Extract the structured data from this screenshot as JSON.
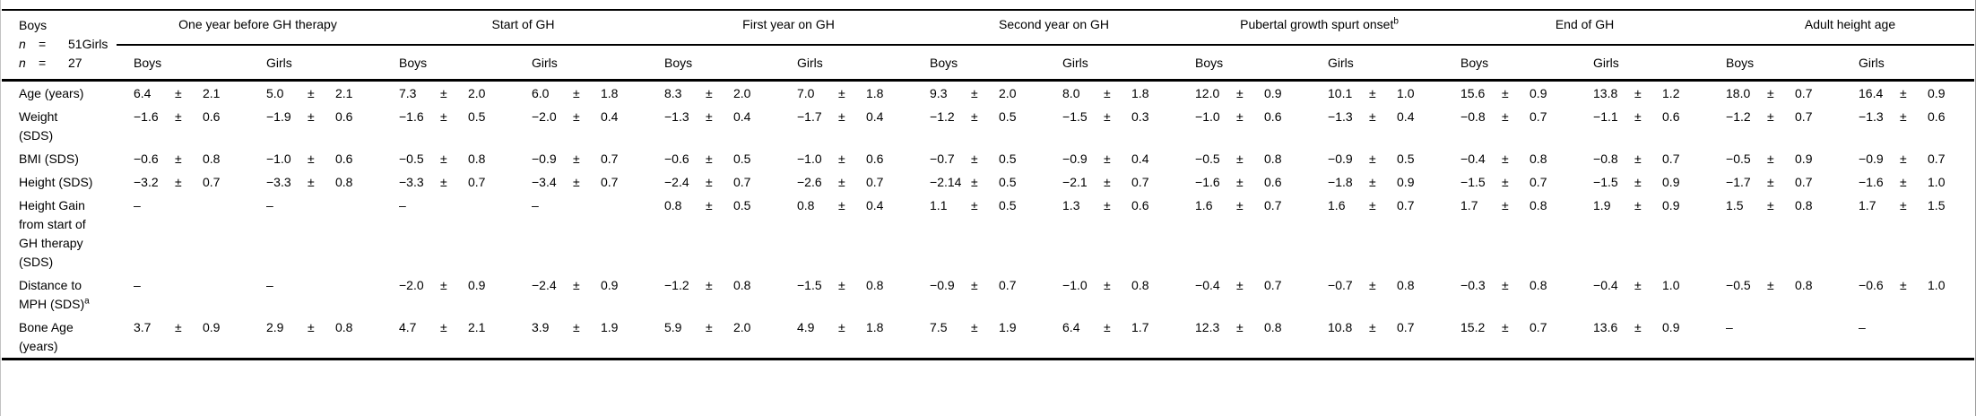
{
  "table": {
    "stub_header": {
      "line1": "Boys",
      "n1": "n",
      "eq1": "=",
      "v1": "51Girls",
      "n2": "n",
      "eq2": "=",
      "v2": "27"
    },
    "sex_labels": [
      "Boys",
      "Girls"
    ],
    "plus_minus": "±",
    "dash": "–",
    "column_groups": [
      {
        "label": "One year before GH therapy",
        "sup": ""
      },
      {
        "label": "Start of GH",
        "sup": ""
      },
      {
        "label": "First year on GH",
        "sup": ""
      },
      {
        "label": "Second year on GH",
        "sup": ""
      },
      {
        "label": "Pubertal growth spurt onset",
        "sup": "b"
      },
      {
        "label": "End of GH",
        "sup": ""
      },
      {
        "label": "Adult height age",
        "sup": ""
      }
    ],
    "rows": [
      {
        "label": "Age (years)",
        "sup": "",
        "cells": [
          [
            "6.4",
            "2.1"
          ],
          [
            "5.0",
            "2.1"
          ],
          [
            "7.3",
            "2.0"
          ],
          [
            "6.0",
            "1.8"
          ],
          [
            "8.3",
            "2.0"
          ],
          [
            "7.0",
            "1.8"
          ],
          [
            "9.3",
            "2.0"
          ],
          [
            "8.0",
            "1.8"
          ],
          [
            "12.0",
            "0.9"
          ],
          [
            "10.1",
            "1.0"
          ],
          [
            "15.6",
            "0.9"
          ],
          [
            "13.8",
            "1.2"
          ],
          [
            "18.0",
            "0.7"
          ],
          [
            "16.4",
            "0.9"
          ]
        ]
      },
      {
        "label": "Weight (SDS)",
        "sup": "",
        "cells": [
          [
            "−1.6",
            "0.6"
          ],
          [
            "−1.9",
            "0.6"
          ],
          [
            "−1.6",
            "0.5"
          ],
          [
            "−2.0",
            "0.4"
          ],
          [
            "−1.3",
            "0.4"
          ],
          [
            "−1.7",
            "0.4"
          ],
          [
            "−1.2",
            "0.5"
          ],
          [
            "−1.5",
            "0.3"
          ],
          [
            "−1.0",
            "0.6"
          ],
          [
            "−1.3",
            "0.4"
          ],
          [
            "−0.8",
            "0.7"
          ],
          [
            "−1.1",
            "0.6"
          ],
          [
            "−1.2",
            "0.7"
          ],
          [
            "−1.3",
            "0.6"
          ]
        ]
      },
      {
        "label": "BMI (SDS)",
        "sup": "",
        "cells": [
          [
            "−0.6",
            "0.8"
          ],
          [
            "−1.0",
            "0.6"
          ],
          [
            "−0.5",
            "0.8"
          ],
          [
            "−0.9",
            "0.7"
          ],
          [
            "−0.6",
            "0.5"
          ],
          [
            "−1.0",
            "0.6"
          ],
          [
            "−0.7",
            "0.5"
          ],
          [
            "−0.9",
            "0.4"
          ],
          [
            "−0.5",
            "0.8"
          ],
          [
            "−0.9",
            "0.5"
          ],
          [
            "−0.4",
            "0.8"
          ],
          [
            "−0.8",
            "0.7"
          ],
          [
            "−0.5",
            "0.9"
          ],
          [
            "−0.9",
            "0.7"
          ]
        ]
      },
      {
        "label": "Height (SDS)",
        "sup": "",
        "cells": [
          [
            "−3.2",
            "0.7"
          ],
          [
            "−3.3",
            "0.8"
          ],
          [
            "−3.3",
            "0.7"
          ],
          [
            "−3.4",
            "0.7"
          ],
          [
            "−2.4",
            "0.7"
          ],
          [
            "−2.6",
            "0.7"
          ],
          [
            "−2.14",
            "0.5"
          ],
          [
            "−2.1",
            "0.7"
          ],
          [
            "−1.6",
            "0.6"
          ],
          [
            "−1.8",
            "0.9"
          ],
          [
            "−1.5",
            "0.7"
          ],
          [
            "−1.5",
            "0.9"
          ],
          [
            "−1.7",
            "0.7"
          ],
          [
            "−1.6",
            "1.0"
          ]
        ]
      },
      {
        "label": "Height Gain from start of GH therapy (SDS)",
        "sup": "",
        "cells": [
          null,
          null,
          null,
          null,
          [
            "0.8",
            "0.5"
          ],
          [
            "0.8",
            "0.4"
          ],
          [
            "1.1",
            "0.5"
          ],
          [
            "1.3",
            "0.6"
          ],
          [
            "1.6",
            "0.7"
          ],
          [
            "1.6",
            "0.7"
          ],
          [
            "1.7",
            "0.8"
          ],
          [
            "1.9",
            "0.9"
          ],
          [
            "1.5",
            "0.8"
          ],
          [
            "1.7",
            "1.5"
          ]
        ]
      },
      {
        "label": "Distance to MPH (SDS)",
        "sup": "a",
        "cells": [
          null,
          null,
          [
            "−2.0",
            "0.9"
          ],
          [
            "−2.4",
            "0.9"
          ],
          [
            "−1.2",
            "0.8"
          ],
          [
            "−1.5",
            "0.8"
          ],
          [
            "−0.9",
            "0.7"
          ],
          [
            "−1.0",
            "0.8"
          ],
          [
            "−0.4",
            "0.7"
          ],
          [
            "−0.7",
            "0.8"
          ],
          [
            "−0.3",
            "0.8"
          ],
          [
            "−0.4",
            "1.0"
          ],
          [
            "−0.5",
            "0.8"
          ],
          [
            "−0.6",
            "1.0"
          ]
        ]
      },
      {
        "label": "Bone Age (years)",
        "sup": "",
        "cells": [
          [
            "3.7",
            "0.9"
          ],
          [
            "2.9",
            "0.8"
          ],
          [
            "4.7",
            "2.1"
          ],
          [
            "3.9",
            "1.9"
          ],
          [
            "5.9",
            "2.0"
          ],
          [
            "4.9",
            "1.8"
          ],
          [
            "7.5",
            "1.9"
          ],
          [
            "6.4",
            "1.7"
          ],
          [
            "12.3",
            "0.8"
          ],
          [
            "10.8",
            "0.7"
          ],
          [
            "15.2",
            "0.7"
          ],
          [
            "13.6",
            "0.9"
          ],
          null,
          null
        ]
      }
    ]
  }
}
